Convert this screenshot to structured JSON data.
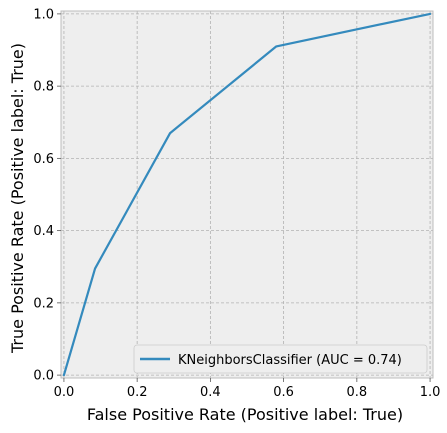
{
  "chart_data": {
    "type": "line",
    "title": "",
    "xlabel": "False Positive Rate (Positive label: True)",
    "ylabel": "True Positive Rate (Positive label: True)",
    "xlim": [
      0,
      1
    ],
    "ylim": [
      0,
      1
    ],
    "xticks": [
      "0.0",
      "0.2",
      "0.4",
      "0.6",
      "0.8",
      "1.0"
    ],
    "yticks": [
      "0.0",
      "0.2",
      "0.4",
      "0.6",
      "0.8",
      "1.0"
    ],
    "grid": true,
    "grid_style": "dashed",
    "legend_position": "lower-right",
    "series": [
      {
        "name": "KNeighborsClassifier (AUC = 0.74)",
        "color": "#348abd",
        "x": [
          0.0,
          0.085,
          0.29,
          0.58,
          1.0
        ],
        "y": [
          0.0,
          0.295,
          0.67,
          0.91,
          1.0
        ]
      }
    ]
  },
  "colors": {
    "plot_background": "#eeeeee",
    "grid": "#b2b2b2",
    "spine": "#bcbcbc",
    "series": "#348abd"
  }
}
